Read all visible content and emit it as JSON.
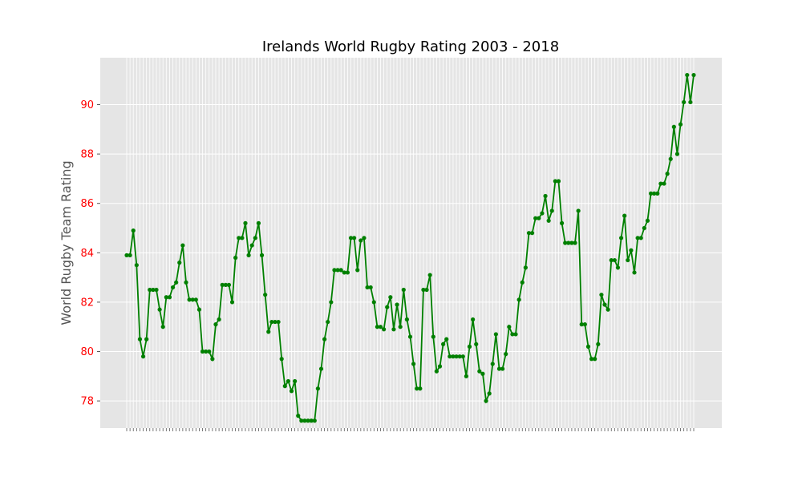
{
  "chart_data": {
    "type": "line",
    "title": "Irelands World Rugby Rating 2003 - 2018",
    "xlabel": "",
    "ylabel": "World Rugby Team Rating",
    "ylim": [
      76.9,
      91.9
    ],
    "yticks": [
      78,
      80,
      82,
      84,
      86,
      88,
      90
    ],
    "ytick_labels": [
      "78",
      "80",
      "82",
      "84",
      "86",
      "88",
      "90"
    ],
    "grid": true,
    "legend": "none",
    "x_tick_labels_legible": false,
    "series": [
      {
        "values": [
          83.9,
          83.9,
          84.9,
          83.5,
          80.5,
          79.8,
          80.5,
          82.5,
          82.5,
          82.5,
          81.7,
          81.0,
          82.2,
          82.2,
          82.6,
          82.8,
          83.6,
          84.3,
          82.8,
          82.1,
          82.1,
          82.1,
          81.7,
          80.0,
          80.0,
          80.0,
          79.7,
          81.1,
          81.3,
          82.7,
          82.7,
          82.7,
          82.0,
          83.8,
          84.6,
          84.6,
          85.2,
          83.9,
          84.3,
          84.6,
          85.2,
          83.9,
          82.3,
          80.8,
          81.2,
          81.2,
          81.2,
          79.7,
          78.6,
          78.8,
          78.4,
          78.8,
          77.4,
          77.2,
          77.2,
          77.2,
          77.2,
          77.2,
          78.5,
          79.3,
          80.5,
          81.2,
          82.0,
          83.3,
          83.3,
          83.3,
          83.2,
          83.2,
          84.6,
          84.6,
          83.3,
          84.5,
          84.6,
          82.6,
          82.6,
          82.0,
          81.0,
          81.0,
          80.9,
          81.8,
          82.2,
          80.9,
          81.9,
          81.0,
          82.5,
          81.3,
          80.6,
          79.5,
          78.5,
          78.5,
          82.5,
          82.5,
          83.1,
          80.6,
          79.2,
          79.4,
          80.3,
          80.5,
          79.8,
          79.8,
          79.8,
          79.8,
          79.8,
          79.0,
          80.2,
          81.3,
          80.3,
          79.2,
          79.1,
          78.0,
          78.3,
          79.5,
          80.7,
          79.3,
          79.3,
          79.9,
          81.0,
          80.7,
          80.7,
          82.1,
          82.8,
          83.4,
          84.8,
          84.8,
          85.4,
          85.4,
          85.6,
          86.3,
          85.3,
          85.7,
          86.9,
          86.9,
          85.2,
          84.4,
          84.4,
          84.4,
          84.4,
          85.7,
          81.1,
          81.1,
          80.2,
          79.7,
          79.7,
          80.3,
          82.3,
          81.9,
          81.7,
          83.7,
          83.7,
          83.4,
          84.6,
          85.5,
          83.7,
          84.1,
          83.2,
          84.6,
          84.6,
          85.0,
          85.3,
          86.4,
          86.4,
          86.4,
          86.8,
          86.8,
          87.2,
          87.8,
          89.1,
          88.0,
          89.2,
          90.1,
          91.2,
          90.1,
          91.2
        ]
      }
    ]
  },
  "colors": {
    "line": "#008000",
    "marker": "#008000",
    "plot_background": "#e5e5e5",
    "grid": "#ffffff",
    "ytick_labels": "#ff0000",
    "xtick_labels": "#555555"
  }
}
